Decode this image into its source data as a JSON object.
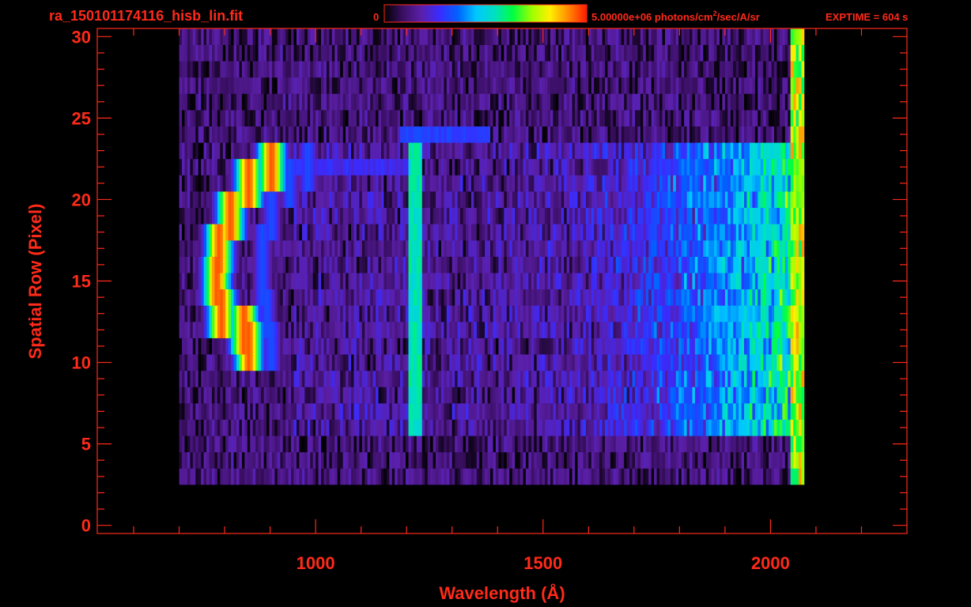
{
  "header": {
    "filename": "ra_150101174116_hisb_lin.fit",
    "colorbar_min": "0",
    "colorbar_max": "5.00000e+06",
    "colorbar_units_prefix": " photons/cm",
    "colorbar_units_exp": "2",
    "colorbar_units_suffix": "/sec/A/sr",
    "exptime": "EXPTIME = 604 s"
  },
  "colors": {
    "axis": "#ff2a1a",
    "background": "#000000",
    "colormap": [
      "#000000",
      "#3a0f63",
      "#5b1fa8",
      "#3a2bff",
      "#0062ff",
      "#00c8ff",
      "#00e0c0",
      "#00ff40",
      "#9cff00",
      "#fff000",
      "#ff8a00",
      "#ff1a00"
    ]
  },
  "chart_data": {
    "type": "heatmap",
    "title": "ra_150101174116_hisb_lin.fit",
    "xlabel": "Wavelength (Å)",
    "ylabel": "Spatial Row (Pixel)",
    "xlim": [
      520,
      2300
    ],
    "ylim": [
      -0.5,
      30.5
    ],
    "x_ticks": [
      1000,
      1500,
      2000
    ],
    "y_ticks": [
      0,
      5,
      10,
      15,
      20,
      25,
      30
    ],
    "colorbar": {
      "min": 0,
      "max": 5000000,
      "units": "photons/cm^2/sec/A/sr"
    },
    "data_extent": {
      "x": [
        700,
        2070
      ],
      "y": [
        3,
        30
      ]
    },
    "features": [
      {
        "name": "Lyman-alpha line",
        "x": 1216,
        "rows": [
          6,
          23
        ],
        "intensity": 0.55
      },
      {
        "name": "bright arc",
        "points": [
          [
            850,
            11
          ],
          [
            840,
            12
          ],
          [
            790,
            13
          ],
          [
            780,
            15
          ],
          [
            785,
            17
          ],
          [
            810,
            19
          ],
          [
            850,
            21
          ],
          [
            900,
            22
          ]
        ],
        "intensity": 1.0
      },
      {
        "name": "inner arc",
        "points": [
          [
            900,
            11
          ],
          [
            890,
            13
          ],
          [
            880,
            15
          ],
          [
            880,
            17
          ],
          [
            900,
            19
          ],
          [
            940,
            21
          ],
          [
            980,
            22
          ]
        ],
        "intensity": 0.6
      },
      {
        "name": "red continuum",
        "x_range": [
          1600,
          2070
        ],
        "rows": [
          6,
          23
        ],
        "intensity": 0.45
      }
    ]
  }
}
